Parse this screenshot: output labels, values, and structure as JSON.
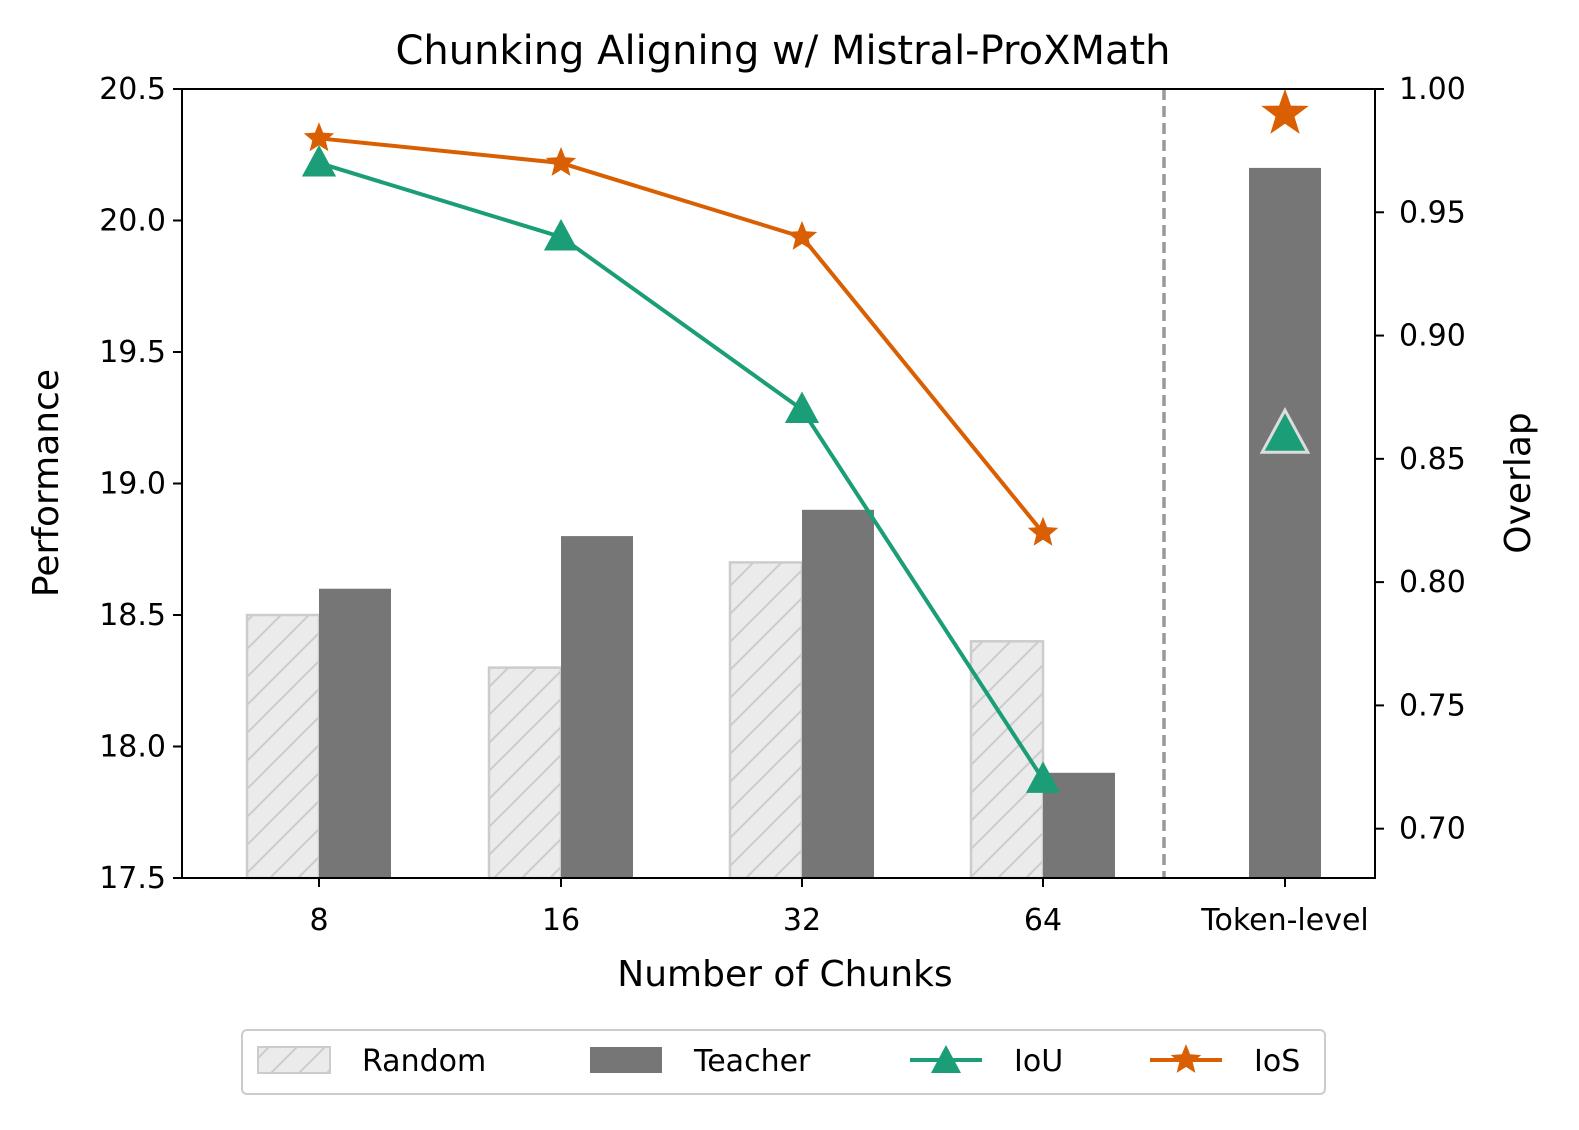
{
  "chart_data": {
    "type": "bar",
    "title": "Chunking Aligning w/ Mistral-ProXMath",
    "xlabel": "Number of Chunks",
    "ylabel": "Performance",
    "ylabel_right": "Overlap",
    "categories": [
      "8",
      "16",
      "32",
      "64",
      "Token-level"
    ],
    "ylim": [
      17.5,
      20.5
    ],
    "ylim_right": [
      0.68,
      1.0
    ],
    "yticks": [
      "17.5",
      "18.0",
      "18.5",
      "19.0",
      "19.5",
      "20.0",
      "20.5"
    ],
    "yticks_right": [
      "0.70",
      "0.75",
      "0.80",
      "0.85",
      "0.90",
      "0.95",
      "1.00"
    ],
    "bar_series": [
      {
        "name": "Random",
        "values": [
          18.5,
          18.3,
          18.7,
          18.4,
          null
        ],
        "color": "#ebebeb",
        "edge": "#cccccc",
        "hatch": true
      },
      {
        "name": "Teacher",
        "values": [
          18.6,
          18.8,
          18.9,
          17.9,
          20.2
        ],
        "color": "#767676"
      }
    ],
    "line_series": [
      {
        "name": "IoU",
        "values": [
          0.97,
          0.94,
          0.87,
          0.72
        ],
        "token_level": 0.86,
        "color": "#1b9e77",
        "marker": "triangle"
      },
      {
        "name": "IoS",
        "values": [
          0.98,
          0.97,
          0.94,
          0.82
        ],
        "token_level": 0.99,
        "color": "#d95f02",
        "marker": "star"
      }
    ],
    "separator": "dashed vertical line between 64 and Token-level",
    "grid": false,
    "legend_position": "bottom-center"
  }
}
